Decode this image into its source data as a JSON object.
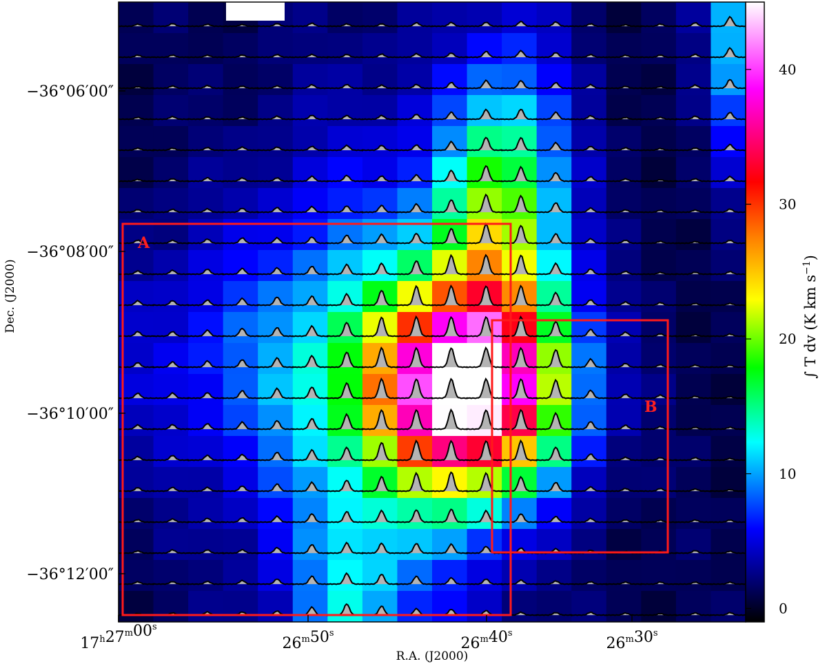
{
  "chart_data": {
    "type": "heatmap",
    "overlay": "spectra grid (black profiles with grey fill, one per map pixel)",
    "title": "",
    "xlabel": "R.A. (J2000)",
    "ylabel": "Dec. (J2000)",
    "x_ticks": [
      {
        "h": "17",
        "m": "27",
        "s": "00",
        "full": true
      },
      {
        "m": "26",
        "s": "50"
      },
      {
        "m": "26",
        "s": "40"
      },
      {
        "m": "26",
        "s": "30"
      }
    ],
    "y_ticks": [
      "−36°06′00″",
      "−36°08′00″",
      "−36°10′00″",
      "−36°12′00″"
    ],
    "colorbar": {
      "label": "∫ T dv (K km s",
      "label_sup": "−1",
      "label_close": ")",
      "ticks": [
        "0",
        "10",
        "20",
        "30",
        "40"
      ],
      "range": [
        -1,
        45
      ],
      "colormap": [
        "#000000",
        "#00007a",
        "#0000ff",
        "#00ffff",
        "#00ff00",
        "#ffff00",
        "#ff8000",
        "#ff0000",
        "#ff00ff",
        "#ffffff"
      ]
    },
    "grid": {
      "cols": 18,
      "rows": 20
    },
    "peaks": [
      {
        "col": 17.8,
        "row": 0.2,
        "amp": 16,
        "sx": 0.8,
        "sy": 3.0
      },
      {
        "col": 10.8,
        "row": 5.0,
        "amp": 9,
        "sx": 1.2,
        "sy": 3.5
      },
      {
        "col": 10.2,
        "row": 7.0,
        "amp": 10,
        "sx": 1.2,
        "sy": 2.5
      },
      {
        "col": 9.6,
        "row": 12.0,
        "amp": 42,
        "sx": 1.8,
        "sy": 2.2
      },
      {
        "col": 7.0,
        "row": 13.0,
        "amp": 8,
        "sx": 2.5,
        "sy": 6.5
      },
      {
        "col": 6.1,
        "row": 19.0,
        "amp": 6,
        "sx": 1.0,
        "sy": 2.0
      },
      {
        "col": 4.0,
        "row": 11.0,
        "amp": 5,
        "sx": 4.0,
        "sy": 3.0
      }
    ],
    "regions": [
      {
        "name": "A"
      },
      {
        "name": "B"
      }
    ]
  }
}
